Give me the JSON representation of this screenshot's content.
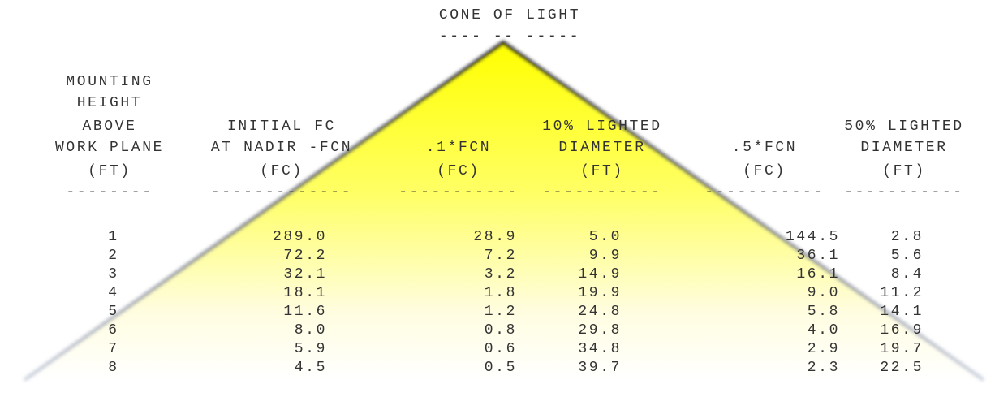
{
  "title": "CONE OF LIGHT",
  "title_rule": "---- -- -----",
  "table": {
    "columns": [
      {
        "header": [
          "MOUNTING",
          "HEIGHT",
          "ABOVE",
          "WORK PLANE",
          "(FT)"
        ],
        "rule": "--------"
      },
      {
        "header": [
          "INITIAL FC",
          "AT NADIR -FCN",
          "(FC)"
        ],
        "rule": "-------------"
      },
      {
        "header": [
          ".1*FCN",
          "(FC)"
        ],
        "rule": "-----------"
      },
      {
        "header": [
          "10% LIGHTED",
          "DIAMETER",
          "(FT)"
        ],
        "rule": "-----------"
      },
      {
        "header": [
          ".5*FCN",
          "(FC)"
        ],
        "rule": "-----------"
      },
      {
        "header": [
          "50% LIGHTED",
          "DIAMETER",
          "(FT)"
        ],
        "rule": "-----------"
      }
    ],
    "rows": [
      [
        "1",
        "289.0",
        "28.9",
        "5.0",
        "144.5",
        "2.8"
      ],
      [
        "2",
        "72.2",
        "7.2",
        "9.9",
        "36.1",
        "5.6"
      ],
      [
        "3",
        "32.1",
        "3.2",
        "14.9",
        "16.1",
        "8.4"
      ],
      [
        "4",
        "18.1",
        "1.8",
        "19.9",
        "9.0",
        "11.2"
      ],
      [
        "5",
        "11.6",
        "1.2",
        "24.8",
        "5.8",
        "14.1"
      ],
      [
        "6",
        "8.0",
        "0.8",
        "29.8",
        "4.0",
        "16.9"
      ],
      [
        "7",
        "5.9",
        "0.6",
        "34.8",
        "2.9",
        "19.7"
      ],
      [
        "8",
        "4.5",
        "0.5",
        "39.7",
        "2.3",
        "22.5"
      ]
    ]
  }
}
